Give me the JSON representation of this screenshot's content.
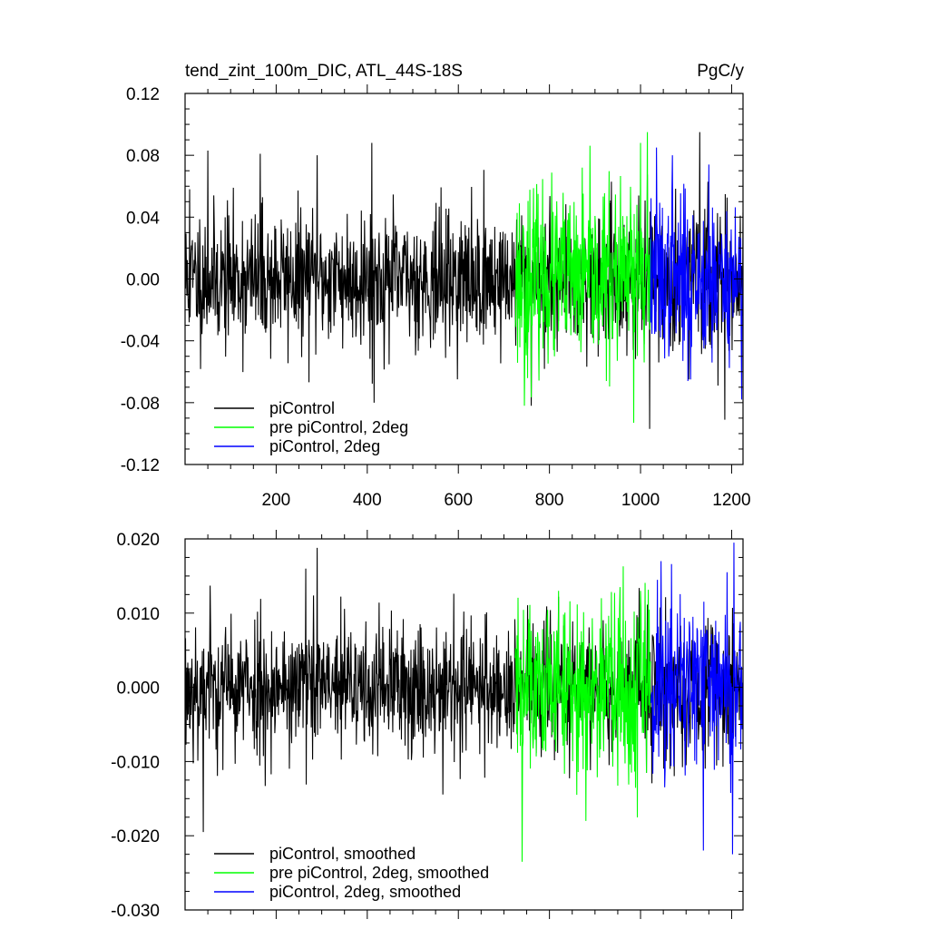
{
  "colors": {
    "piControl": "#000000",
    "pre_piControl_2deg": "#00ff00",
    "piControl_2deg": "#0000ff"
  },
  "chart_data": [
    {
      "type": "line",
      "title": "tend_zint_100m_DIC, ATL_44S-18S",
      "units": "PgC/y",
      "xlim": [
        0,
        1225
      ],
      "ylim": [
        -0.12,
        0.12
      ],
      "xticks": [
        200,
        400,
        600,
        800,
        1000,
        1200
      ],
      "xtick_labels": [
        "200",
        "400",
        "600",
        "800",
        "1000",
        "1200"
      ],
      "yticks": [
        -0.12,
        -0.08,
        -0.04,
        0.0,
        0.04,
        0.08,
        0.12
      ],
      "ytick_labels": [
        "-0.12",
        "-0.08",
        "-0.04",
        "0.00",
        "0.04",
        "0.08",
        "0.12"
      ],
      "legend_position": "bottom-left",
      "legend": [
        "piControl",
        "pre piControl, 2deg",
        "piControl, 2deg"
      ],
      "series": [
        {
          "name": "piControl",
          "color": "#000000",
          "x_range": [
            1,
            1225
          ],
          "std": 0.026,
          "seed": 11,
          "peaks": [
            [
              10,
              0.058
            ],
            [
              50,
              0.083
            ],
            [
              165,
              0.081
            ],
            [
              290,
              0.08
            ],
            [
              410,
              0.088
            ],
            [
              1020,
              -0.097
            ],
            [
              1130,
              0.095
            ],
            [
              1185,
              -0.091
            ],
            [
              415,
              -0.08
            ],
            [
              760,
              -0.082
            ]
          ]
        },
        {
          "name": "pre piControl, 2deg",
          "color": "#00ff00",
          "x_range": [
            725,
            1022
          ],
          "std": 0.033,
          "seed": 23,
          "peaks": [
            [
              745,
              0.08
            ],
            [
              745,
              -0.082
            ],
            [
              985,
              -0.093
            ],
            [
              1015,
              0.095
            ],
            [
              1000,
              0.088
            ]
          ]
        },
        {
          "name": "piControl, 2deg",
          "color": "#0000ff",
          "x_range": [
            1022,
            1225
          ],
          "std": 0.03,
          "seed": 37,
          "peaks": [
            [
              1035,
              0.085
            ],
            [
              1070,
              0.08
            ],
            [
              1150,
              0.074
            ],
            [
              1222,
              -0.078
            ],
            [
              1110,
              -0.065
            ]
          ]
        }
      ]
    },
    {
      "type": "line",
      "title": "",
      "xlim": [
        0,
        1225
      ],
      "ylim": [
        -0.03,
        0.02
      ],
      "xticks": [
        200,
        400,
        600,
        800,
        1000,
        1200
      ],
      "yticks": [
        -0.03,
        -0.02,
        -0.01,
        0.0,
        0.01,
        0.02
      ],
      "ytick_labels": [
        "-0.030",
        "-0.020",
        "-0.010",
        "0.000",
        "0.010",
        "0.020"
      ],
      "legend_position": "bottom-left",
      "legend": [
        "piControl, smoothed",
        "pre piControl, 2deg, smoothed",
        "piControl, 2deg, smoothed"
      ],
      "series": [
        {
          "name": "piControl, smoothed",
          "color": "#000000",
          "x_range": [
            1,
            1225
          ],
          "std": 0.0055,
          "seed": 53,
          "peaks": [
            [
              40,
              -0.0195
            ],
            [
              290,
              0.0188
            ],
            [
              265,
              0.016
            ],
            [
              55,
              0.0137
            ],
            [
              1100,
              -0.0105
            ]
          ]
        },
        {
          "name": "pre piControl, 2deg, smoothed",
          "color": "#00ff00",
          "x_range": [
            725,
            1022
          ],
          "std": 0.0075,
          "seed": 61,
          "peaks": [
            [
              740,
              -0.0235
            ],
            [
              820,
              0.013
            ],
            [
              955,
              0.0135
            ],
            [
              1000,
              0.013
            ],
            [
              880,
              -0.018
            ]
          ]
        },
        {
          "name": "piControl, 2deg, smoothed",
          "color": "#0000ff",
          "x_range": [
            1022,
            1225
          ],
          "std": 0.0075,
          "seed": 71,
          "peaks": [
            [
              1205,
              0.0195
            ],
            [
              1202,
              -0.0225
            ],
            [
              1138,
              -0.022
            ],
            [
              1045,
              0.017
            ],
            [
              1190,
              0.0155
            ]
          ]
        }
      ]
    }
  ]
}
